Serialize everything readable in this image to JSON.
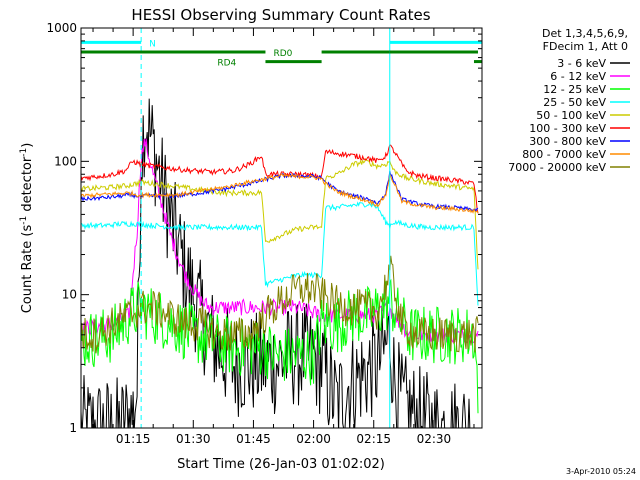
{
  "chart_data": {
    "type": "line",
    "title": "HESSI Observing Summary Count Rates",
    "xlabel": "Start Time (26-Jan-03 01:02:02)",
    "ylabel_main": "Count Rate (s",
    "ylabel_exp1": "-1",
    "ylabel_mid": " detector",
    "ylabel_exp2": "-1",
    "ylabel_end": ")",
    "y_scale": "log",
    "ylim": [
      1,
      1000
    ],
    "xlim_min": [
      62,
      162
    ],
    "x_ticks": [
      {
        "min": 75,
        "label": "01:15"
      },
      {
        "min": 90,
        "label": "01:30"
      },
      {
        "min": 105,
        "label": "01:45"
      },
      {
        "min": 120,
        "label": "02:00"
      },
      {
        "min": 135,
        "label": "02:15"
      },
      {
        "min": 150,
        "label": "02:30"
      }
    ],
    "y_ticks": [
      {
        "value": 1,
        "label": "1"
      },
      {
        "value": 10,
        "label": "10"
      },
      {
        "value": 100,
        "label": "100"
      },
      {
        "value": 1000,
        "label": "1000"
      }
    ],
    "legend_header": [
      "Det 1,3,4,5,6,9,",
      "FDecim 1, Att 0"
    ],
    "footer_date": "3-Apr-2010 05:24",
    "attenuator_labels": {
      "N": "N",
      "RD0": "RD0",
      "RD4": "RD4"
    },
    "attenuator_bars": [
      {
        "name": "N",
        "color": "#00ffff",
        "y_value": 780,
        "segments": [
          [
            62,
            77
          ],
          [
            139,
            162
          ]
        ]
      },
      {
        "name": "RD0",
        "color": "#008000",
        "y_value": 660,
        "segments": [
          [
            62,
            108
          ],
          [
            122,
            139
          ],
          [
            139,
            161
          ]
        ]
      },
      {
        "name": "RD4",
        "color": "#008000",
        "y_value": 560,
        "segments": [
          [
            108,
            122
          ],
          [
            160,
            162
          ]
        ]
      }
    ],
    "vlines": [
      {
        "x": 77,
        "color": "#00ffff",
        "style": "dashed"
      },
      {
        "x": 139,
        "color": "#00ffff",
        "style": "solid"
      },
      {
        "x": 162,
        "color": "#00ffff",
        "style": "dashed"
      }
    ],
    "series": [
      {
        "name": "3 - 6 keV",
        "color": "#000000",
        "noise": 0.8,
        "points": [
          [
            62,
            1.0
          ],
          [
            66,
            1.0
          ],
          [
            72,
            1.0
          ],
          [
            75,
            1.3
          ],
          [
            76,
            2.0
          ],
          [
            77,
            120
          ],
          [
            78,
            220
          ],
          [
            80,
            130
          ],
          [
            82,
            70
          ],
          [
            84,
            40
          ],
          [
            86,
            25
          ],
          [
            88,
            15
          ],
          [
            90,
            10
          ],
          [
            92,
            7
          ],
          [
            94,
            5
          ],
          [
            96,
            4
          ],
          [
            100,
            3
          ],
          [
            105,
            3
          ],
          [
            110,
            3
          ],
          [
            115,
            3.5
          ],
          [
            118,
            3.5
          ],
          [
            122,
            3
          ],
          [
            124,
            2
          ],
          [
            126,
            1.5
          ],
          [
            128,
            2.0
          ],
          [
            132,
            2.5
          ],
          [
            136,
            3
          ],
          [
            138,
            4
          ],
          [
            139,
            5
          ],
          [
            140,
            2.5
          ],
          [
            142,
            1.5
          ],
          [
            146,
            1.2
          ],
          [
            150,
            1.0
          ],
          [
            155,
            1.0
          ],
          [
            160,
            1.0
          ]
        ]
      },
      {
        "name": "6 - 12 keV",
        "color": "#ff00ff",
        "noise": 0.12,
        "points": [
          [
            62,
            5.5
          ],
          [
            70,
            6
          ],
          [
            74,
            7
          ],
          [
            76,
            30
          ],
          [
            77,
            110
          ],
          [
            78,
            140
          ],
          [
            80,
            80
          ],
          [
            82,
            50
          ],
          [
            84,
            30
          ],
          [
            86,
            20
          ],
          [
            88,
            14
          ],
          [
            90,
            11
          ],
          [
            92,
            9
          ],
          [
            94,
            8
          ],
          [
            98,
            8
          ],
          [
            104,
            8
          ],
          [
            110,
            8
          ],
          [
            116,
            8
          ],
          [
            122,
            7
          ],
          [
            126,
            7
          ],
          [
            130,
            7
          ],
          [
            136,
            7
          ],
          [
            138,
            8
          ],
          [
            139,
            8
          ],
          [
            140,
            7
          ],
          [
            144,
            5
          ],
          [
            148,
            5
          ],
          [
            152,
            5
          ],
          [
            158,
            5
          ],
          [
            161,
            5
          ]
        ]
      },
      {
        "name": "12 - 25 keV",
        "color": "#00ff00",
        "noise": 0.45,
        "points": [
          [
            62,
            4.5
          ],
          [
            70,
            5
          ],
          [
            74,
            7
          ],
          [
            77,
            8
          ],
          [
            80,
            7
          ],
          [
            85,
            6
          ],
          [
            90,
            5
          ],
          [
            95,
            4.5
          ],
          [
            100,
            4
          ],
          [
            105,
            4
          ],
          [
            108,
            4
          ],
          [
            110,
            3.5
          ],
          [
            115,
            3.5
          ],
          [
            120,
            3.5
          ],
          [
            122,
            6
          ],
          [
            126,
            6
          ],
          [
            130,
            7
          ],
          [
            134,
            7
          ],
          [
            137,
            8
          ],
          [
            139,
            9
          ],
          [
            141,
            7
          ],
          [
            144,
            5
          ],
          [
            148,
            5
          ],
          [
            152,
            5
          ],
          [
            156,
            5
          ],
          [
            160,
            5
          ],
          [
            161,
            2
          ]
        ]
      },
      {
        "name": "25 - 50 keV",
        "color": "#00ffff",
        "noise": 0.04,
        "points": [
          [
            62,
            33
          ],
          [
            68,
            33
          ],
          [
            72,
            34
          ],
          [
            76,
            34
          ],
          [
            80,
            33
          ],
          [
            86,
            32
          ],
          [
            92,
            32
          ],
          [
            98,
            32
          ],
          [
            104,
            32
          ],
          [
            107,
            32
          ],
          [
            108,
            12
          ],
          [
            112,
            13
          ],
          [
            116,
            14
          ],
          [
            120,
            14
          ],
          [
            122,
            14
          ],
          [
            123,
            45
          ],
          [
            126,
            45
          ],
          [
            130,
            47
          ],
          [
            134,
            48
          ],
          [
            136,
            45
          ],
          [
            138,
            35
          ],
          [
            139,
            33
          ],
          [
            140,
            35
          ],
          [
            144,
            33
          ],
          [
            148,
            32
          ],
          [
            152,
            32
          ],
          [
            158,
            32
          ],
          [
            160,
            32
          ],
          [
            161,
            8
          ]
        ]
      },
      {
        "name": "50 - 100 keV",
        "color": "#cccc00",
        "noise": 0.04,
        "points": [
          [
            62,
            62
          ],
          [
            66,
            63
          ],
          [
            70,
            64
          ],
          [
            74,
            66
          ],
          [
            77,
            70
          ],
          [
            80,
            68
          ],
          [
            84,
            66
          ],
          [
            90,
            62
          ],
          [
            94,
            60
          ],
          [
            98,
            58
          ],
          [
            102,
            58
          ],
          [
            106,
            58
          ],
          [
            107,
            59
          ],
          [
            108,
            25
          ],
          [
            112,
            28
          ],
          [
            116,
            31
          ],
          [
            120,
            32
          ],
          [
            122,
            32
          ],
          [
            123,
            75
          ],
          [
            126,
            80
          ],
          [
            130,
            95
          ],
          [
            133,
            100
          ],
          [
            136,
            92
          ],
          [
            138,
            95
          ],
          [
            139,
            100
          ],
          [
            140,
            85
          ],
          [
            143,
            75
          ],
          [
            146,
            72
          ],
          [
            150,
            68
          ],
          [
            155,
            65
          ],
          [
            158,
            63
          ],
          [
            160,
            62
          ],
          [
            161,
            15
          ]
        ]
      },
      {
        "name": "100 - 300 keV",
        "color": "#ff0000",
        "noise": 0.04,
        "points": [
          [
            62,
            75
          ],
          [
            66,
            77
          ],
          [
            70,
            80
          ],
          [
            73,
            85
          ],
          [
            75,
            100
          ],
          [
            77,
            95
          ],
          [
            80,
            92
          ],
          [
            85,
            88
          ],
          [
            90,
            85
          ],
          [
            95,
            83
          ],
          [
            100,
            85
          ],
          [
            104,
            95
          ],
          [
            107,
            110
          ],
          [
            108,
            80
          ],
          [
            112,
            80
          ],
          [
            116,
            80
          ],
          [
            120,
            78
          ],
          [
            122,
            76
          ],
          [
            123,
            118
          ],
          [
            126,
            115
          ],
          [
            130,
            110
          ],
          [
            134,
            105
          ],
          [
            136,
            100
          ],
          [
            138,
            110
          ],
          [
            139,
            130
          ],
          [
            140,
            120
          ],
          [
            143,
            85
          ],
          [
            146,
            78
          ],
          [
            150,
            75
          ],
          [
            155,
            72
          ],
          [
            158,
            70
          ],
          [
            160,
            68
          ],
          [
            161,
            40
          ]
        ]
      },
      {
        "name": "300 - 800 keV",
        "color": "#0000ff",
        "noise": 0.03,
        "points": [
          [
            62,
            52
          ],
          [
            66,
            53
          ],
          [
            70,
            54
          ],
          [
            74,
            56
          ],
          [
            76,
            55
          ],
          [
            80,
            55
          ],
          [
            86,
            55
          ],
          [
            92,
            58
          ],
          [
            98,
            62
          ],
          [
            104,
            68
          ],
          [
            108,
            73
          ],
          [
            112,
            78
          ],
          [
            116,
            78
          ],
          [
            120,
            77
          ],
          [
            122,
            75
          ],
          [
            123,
            70
          ],
          [
            126,
            60
          ],
          [
            130,
            55
          ],
          [
            134,
            52
          ],
          [
            136,
            48
          ],
          [
            138,
            58
          ],
          [
            139,
            82
          ],
          [
            140,
            72
          ],
          [
            142,
            52
          ],
          [
            146,
            48
          ],
          [
            150,
            46
          ],
          [
            155,
            45
          ],
          [
            158,
            44
          ],
          [
            161,
            43
          ]
        ]
      },
      {
        "name": "800 - 7000 keV",
        "color": "#ff8c00",
        "noise": 0.03,
        "points": [
          [
            62,
            55
          ],
          [
            66,
            56
          ],
          [
            70,
            57
          ],
          [
            74,
            58
          ],
          [
            76,
            56
          ],
          [
            80,
            56
          ],
          [
            86,
            56
          ],
          [
            92,
            60
          ],
          [
            98,
            64
          ],
          [
            104,
            70
          ],
          [
            108,
            74
          ],
          [
            112,
            78
          ],
          [
            116,
            77
          ],
          [
            120,
            76
          ],
          [
            122,
            74
          ],
          [
            123,
            68
          ],
          [
            126,
            59
          ],
          [
            130,
            54
          ],
          [
            134,
            50
          ],
          [
            136,
            47
          ],
          [
            138,
            56
          ],
          [
            139,
            78
          ],
          [
            140,
            70
          ],
          [
            142,
            50
          ],
          [
            146,
            47
          ],
          [
            150,
            45
          ],
          [
            155,
            44
          ],
          [
            158,
            43
          ],
          [
            161,
            42
          ]
        ]
      },
      {
        "name": "7000 - 20000 keV",
        "color": "#808000",
        "noise": 0.28,
        "points": [
          [
            62,
            5
          ],
          [
            66,
            5
          ],
          [
            70,
            6
          ],
          [
            74,
            7
          ],
          [
            77,
            8
          ],
          [
            80,
            8
          ],
          [
            84,
            7
          ],
          [
            88,
            6
          ],
          [
            92,
            6
          ],
          [
            96,
            5
          ],
          [
            100,
            5
          ],
          [
            104,
            5
          ],
          [
            108,
            7
          ],
          [
            112,
            9
          ],
          [
            116,
            11
          ],
          [
            120,
            11
          ],
          [
            122,
            10
          ],
          [
            124,
            9
          ],
          [
            128,
            8
          ],
          [
            132,
            8
          ],
          [
            136,
            7.5
          ],
          [
            138,
            12
          ],
          [
            139,
            15
          ],
          [
            140,
            12
          ],
          [
            142,
            6
          ],
          [
            146,
            5
          ],
          [
            150,
            5
          ],
          [
            155,
            5
          ],
          [
            158,
            5
          ],
          [
            161,
            5
          ]
        ]
      }
    ]
  }
}
